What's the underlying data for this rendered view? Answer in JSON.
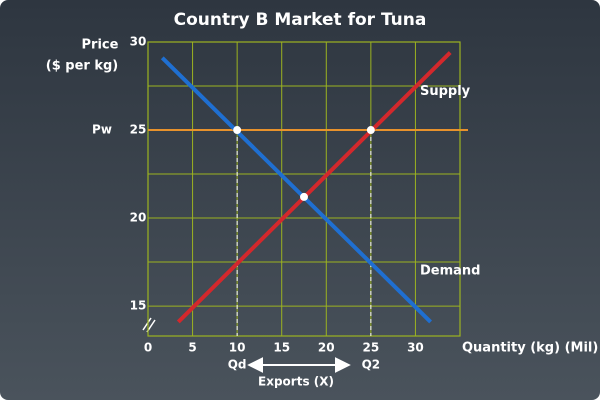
{
  "chart_data": {
    "type": "line",
    "title": "Country B Market for Tuna",
    "y_label_lines": [
      "Price",
      "($ per kg)"
    ],
    "x_label": "Quantity (kg) (Mil)",
    "xlim": [
      0,
      35
    ],
    "ylim": [
      13.3,
      30
    ],
    "xticks": [
      0,
      5,
      10,
      15,
      20,
      25,
      30
    ],
    "yticks": [
      15,
      20,
      25,
      30
    ],
    "xgrid": [
      5,
      10,
      15,
      20,
      25,
      30,
      35
    ],
    "ygrid": [
      15,
      17.5,
      20,
      22.5,
      25,
      27.5,
      30
    ],
    "grid_color": "#9cb320",
    "series": [
      {
        "name": "Demand",
        "color": "#1f6fd1",
        "x": [
          1.6,
          31.7
        ],
        "values": [
          29.1,
          14.1
        ]
      },
      {
        "name": "Supply",
        "color": "#d3282c",
        "x": [
          3.4,
          33.9
        ],
        "values": [
          14.1,
          29.4
        ]
      }
    ],
    "price_line": {
      "label": "Pw",
      "value": 25,
      "color": "#e8922c"
    },
    "points": {
      "x": [
        10,
        25,
        17.5
      ],
      "values": [
        25,
        25,
        21.2
      ]
    },
    "quantity_labels": [
      {
        "label": "Qd",
        "x": 10
      },
      {
        "label": "Q2",
        "x": 25
      }
    ],
    "exports_label": "Exports (X)"
  }
}
